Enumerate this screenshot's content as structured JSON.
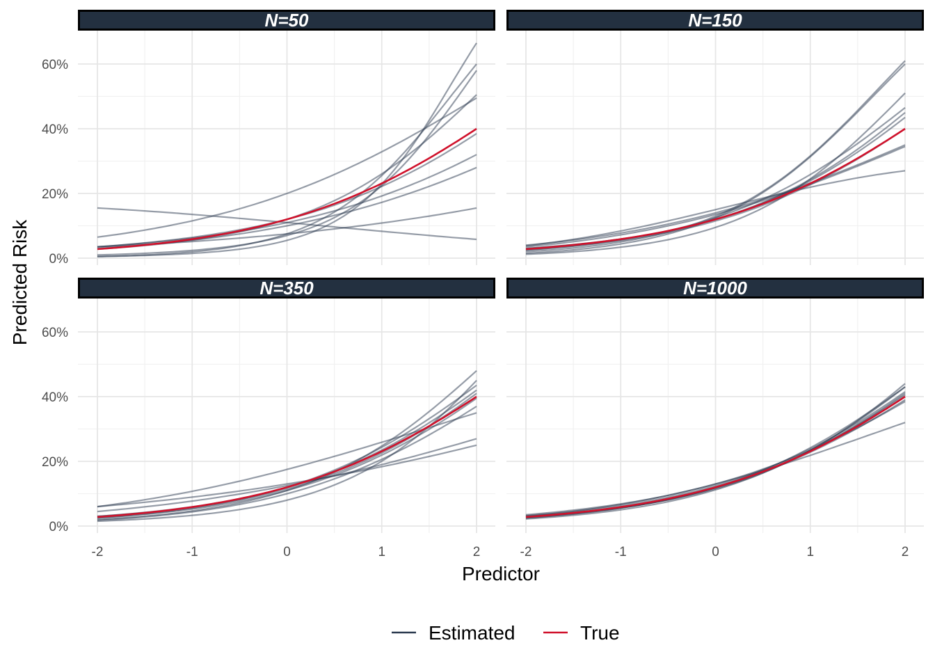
{
  "chart_data": {
    "type": "line",
    "xlabel": "Predictor",
    "ylabel": "Predicted Risk",
    "xlim": [
      -2,
      2
    ],
    "ylim": [
      0,
      0.7
    ],
    "x_ticks": [
      "-2",
      "-1",
      "0",
      "1",
      "2"
    ],
    "y_ticks": [
      "0%",
      "20%",
      "40%",
      "60%"
    ],
    "grid": true,
    "legend_placement": "bottom",
    "legend": [
      {
        "label": "Estimated",
        "color": "#2b3a4f"
      },
      {
        "label": "True",
        "color": "#d0112b"
      }
    ],
    "colors": {
      "estimated": "#2b3a4f",
      "true": "#d0112b",
      "strip_fill": "#233040",
      "strip_border": "#000000"
    },
    "true_curve": {
      "name": "True",
      "y_at_x_minus2": 0.028,
      "y_at_x0": 0.12,
      "y_at_x2": 0.4
    },
    "panels": [
      {
        "title": "N=50",
        "estimated": [
          [
            0.155,
            0.11,
            0.058
          ],
          [
            0.065,
            0.2,
            0.495
          ],
          [
            0.028,
            0.12,
            0.505
          ],
          [
            0.035,
            0.11,
            0.32
          ],
          [
            0.03,
            0.1,
            0.28
          ],
          [
            0.005,
            0.075,
            0.6
          ],
          [
            0.005,
            0.055,
            0.665
          ],
          [
            0.01,
            0.07,
            0.58
          ],
          [
            0.035,
            0.075,
            0.155
          ],
          [
            0.035,
            0.12,
            0.385
          ]
        ]
      },
      {
        "title": "N=150",
        "estimated": [
          [
            0.04,
            0.14,
            0.35
          ],
          [
            0.038,
            0.15,
            0.27
          ],
          [
            0.03,
            0.12,
            0.45
          ],
          [
            0.025,
            0.115,
            0.4
          ],
          [
            0.02,
            0.13,
            0.61
          ],
          [
            0.015,
            0.125,
            0.6
          ],
          [
            0.035,
            0.135,
            0.345
          ],
          [
            0.03,
            0.12,
            0.435
          ],
          [
            0.012,
            0.095,
            0.51
          ],
          [
            0.025,
            0.125,
            0.465
          ]
        ]
      },
      {
        "title": "N=350",
        "estimated": [
          [
            0.06,
            0.175,
            0.35
          ],
          [
            0.06,
            0.13,
            0.25
          ],
          [
            0.045,
            0.125,
            0.27
          ],
          [
            0.02,
            0.11,
            0.48
          ],
          [
            0.03,
            0.115,
            0.41
          ],
          [
            0.025,
            0.12,
            0.435
          ],
          [
            0.015,
            0.08,
            0.45
          ],
          [
            0.018,
            0.1,
            0.37
          ],
          [
            0.025,
            0.11,
            0.395
          ],
          [
            0.03,
            0.12,
            0.42
          ]
        ]
      },
      {
        "title": "N=1000",
        "estimated": [
          [
            0.035,
            0.13,
            0.385
          ],
          [
            0.03,
            0.115,
            0.44
          ],
          [
            0.028,
            0.12,
            0.4
          ],
          [
            0.025,
            0.12,
            0.43
          ],
          [
            0.03,
            0.13,
            0.32
          ],
          [
            0.027,
            0.118,
            0.41
          ],
          [
            0.022,
            0.112,
            0.43
          ],
          [
            0.028,
            0.12,
            0.39
          ],
          [
            0.032,
            0.125,
            0.415
          ],
          [
            0.025,
            0.118,
            0.405
          ]
        ]
      }
    ]
  }
}
